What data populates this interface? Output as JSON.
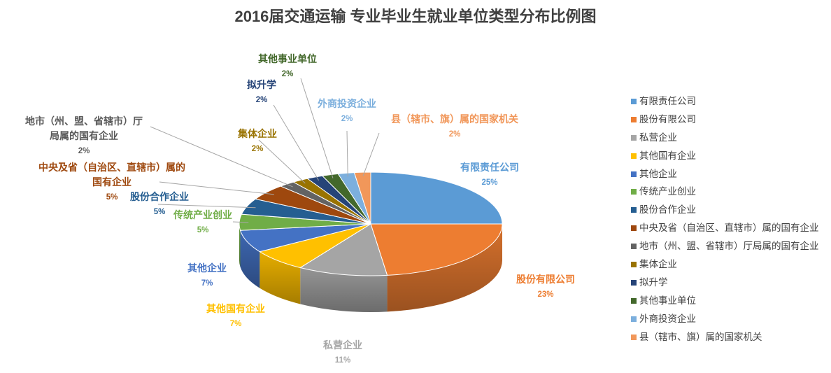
{
  "chart_data": {
    "type": "pie",
    "title": "2016届交通运输 专业毕业生就业单位类型分布比例图",
    "legend_position": "right",
    "slices": [
      {
        "label": "有限责任公司",
        "legend": "有限责任公司",
        "percent_label": "25%",
        "value": 25,
        "color": "#5B9BD5"
      },
      {
        "label": "股份有限公司",
        "legend": "股份有限公司",
        "percent_label": "23%",
        "value": 23,
        "color": "#ED7D31"
      },
      {
        "label": "私营企业",
        "legend": "私营企业",
        "percent_label": "11%",
        "value": 11,
        "color": "#A5A5A5"
      },
      {
        "label": "其他国有企业",
        "legend": "其他国有企业",
        "percent_label": "7%",
        "value": 7,
        "color": "#FFC000"
      },
      {
        "label": "其他企业",
        "legend": "其他企业",
        "percent_label": "7%",
        "value": 7,
        "color": "#4472C4"
      },
      {
        "label": "传统产业创业",
        "legend": "传统产业创业",
        "percent_label": "5%",
        "value": 5,
        "color": "#70AD47"
      },
      {
        "label": "股份合作企业",
        "legend": "股份合作企业",
        "percent_label": "5%",
        "value": 5,
        "color": "#255E91"
      },
      {
        "label": "中央及省（自治区、直辖市）属的\n国有企业",
        "legend": "中央及省（自治区、直辖市）属的国有企业",
        "percent_label": "5%",
        "value": 5,
        "color": "#9E480E"
      },
      {
        "label": "地市（州、盟、省辖市）厅\n局属的国有企业",
        "legend": "地市（州、盟、省辖市）厅局属的国有企业",
        "percent_label": "2%",
        "value": 2,
        "color": "#636363"
      },
      {
        "label": "集体企业",
        "legend": "集体企业",
        "percent_label": "2%",
        "value": 2,
        "color": "#997300"
      },
      {
        "label": "拟升学",
        "legend": "拟升学",
        "percent_label": "2%",
        "value": 2,
        "color": "#264478"
      },
      {
        "label": "其他事业单位",
        "legend": "其他事业单位",
        "percent_label": "2%",
        "value": 2,
        "color": "#43682B"
      },
      {
        "label": "外商投资企业",
        "legend": "外商投资企业",
        "percent_label": "2%",
        "value": 2,
        "color": "#7CAFDD"
      },
      {
        "label": "县（辖市、旗）属的国家机关",
        "legend": "县（辖市、旗）属的国家机关",
        "percent_label": "2%",
        "value": 2,
        "color": "#F1975A"
      }
    ]
  }
}
